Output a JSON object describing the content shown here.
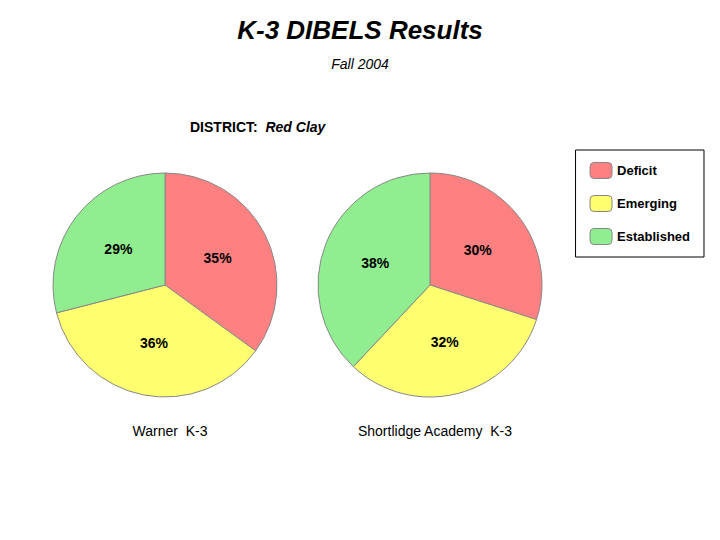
{
  "title": "K-3 DIBELS Results",
  "subtitle": "Fall 2004",
  "annotations": [
    "DISTRICT:",
    "Red Clay"
  ],
  "chart_data": [
    {
      "type": "pie",
      "title": "Warner  K-3",
      "categories": [
        "Deficit",
        "Emerging",
        "Established"
      ],
      "values": [
        35,
        36,
        29
      ],
      "value_labels": [
        "35%",
        "36%",
        "29%"
      ],
      "colors": [
        "#FF8080",
        "#FFFF70",
        "#90EE90"
      ],
      "data_labels": true,
      "legend": "upper right"
    },
    {
      "type": "pie",
      "title": "Shortlidge Academy  K-3",
      "categories": [
        "Deficit",
        "Emerging",
        "Established"
      ],
      "values": [
        30,
        32,
        38
      ],
      "value_labels": [
        "30%",
        "32%",
        "38%"
      ],
      "colors": [
        "#FF8080",
        "#FFFF70",
        "#90EE90"
      ],
      "data_labels": true,
      "legend": "upper right"
    }
  ]
}
